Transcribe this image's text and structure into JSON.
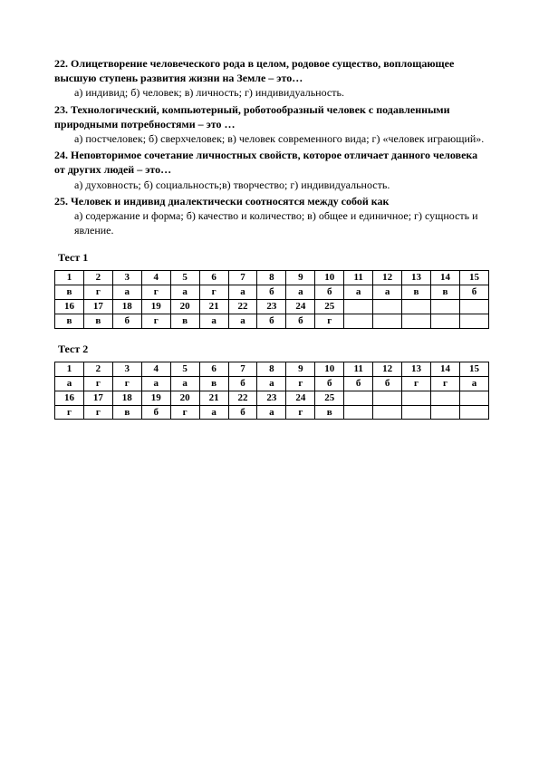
{
  "questions": [
    {
      "num": "22.",
      "stem": "Олицетворение человеческого рода в целом, родовое существо, воплощающее высшую ступень развития жизни на Земле – это…",
      "opts": "а) индивид; б) человек; в) личность; г) индивидуальность."
    },
    {
      "num": "23.",
      "stem": "Технологический, компьютерный, роботообразный человек с подавленными природными потребностями – это …",
      "opts": "а) постчеловек;  б) сверхчеловек;   в) человек современного вида;  г) «человек играющий»."
    },
    {
      "num": "24.",
      "stem": "Неповторимое сочетание личностных свойств, которое отличает данного человека от других людей – это…",
      "opts": "а) духовность; б) социальность;в) творчество; г) индивидуальность."
    },
    {
      "num": "25.",
      "stem": "Человек и индивид диалектически соотносятся между собой как",
      "opts": "а) содержание и форма;  б) качество и количество;  в) общее и единичное;    г) сущность и явление."
    }
  ],
  "tests": [
    {
      "label": "Тест 1",
      "rows": [
        [
          "1",
          "2",
          "3",
          "4",
          "5",
          "6",
          "7",
          "8",
          "9",
          "10",
          "11",
          "12",
          "13",
          "14",
          "15"
        ],
        [
          "в",
          "г",
          "а",
          "г",
          "а",
          "г",
          "а",
          "б",
          "а",
          "б",
          "а",
          "а",
          "в",
          "в",
          "б"
        ],
        [
          "16",
          "17",
          "18",
          "19",
          "20",
          "21",
          "22",
          "23",
          "24",
          "25",
          "",
          "",
          "",
          "",
          ""
        ],
        [
          "в",
          "в",
          "б",
          "г",
          "в",
          "а",
          "а",
          "б",
          "б",
          "г",
          "",
          "",
          "",
          "",
          ""
        ]
      ]
    },
    {
      "label": "Тест 2",
      "rows": [
        [
          "1",
          "2",
          "3",
          "4",
          "5",
          "6",
          "7",
          "8",
          "9",
          "10",
          "11",
          "12",
          "13",
          "14",
          "15"
        ],
        [
          "а",
          "г",
          "г",
          "а",
          "а",
          "в",
          "б",
          "а",
          "г",
          "б",
          "б",
          "б",
          "г",
          "г",
          "а"
        ],
        [
          "16",
          "17",
          "18",
          "19",
          "20",
          "21",
          "22",
          "23",
          "24",
          "25",
          "",
          "",
          "",
          "",
          ""
        ],
        [
          "г",
          "г",
          "в",
          "б",
          "г",
          "а",
          "б",
          "а",
          "г",
          "в",
          "",
          "",
          "",
          "",
          ""
        ]
      ]
    }
  ]
}
